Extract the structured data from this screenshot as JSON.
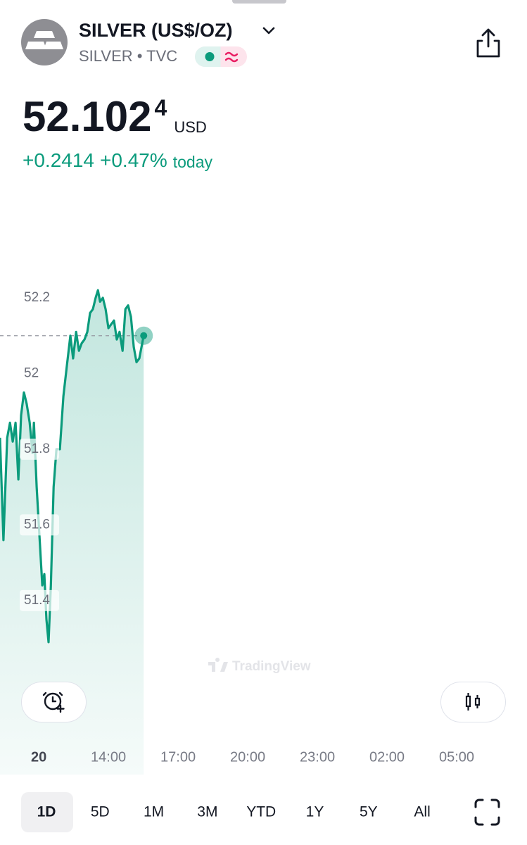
{
  "header": {
    "title": "SILVER (US$/OZ)",
    "subtitle": "SILVER • TVC",
    "price": "52.102",
    "price_tail": "4",
    "currency": "USD",
    "change": "+0.2414",
    "change_pct": "+0.47%",
    "change_period": "today"
  },
  "chart_data": {
    "type": "line",
    "color": "#0b9b7c",
    "x": [
      9.33,
      9.48,
      9.64,
      9.76,
      9.88,
      10.0,
      10.12,
      10.24,
      10.36,
      10.48,
      10.61,
      10.73,
      10.79,
      10.91,
      11.03,
      11.15,
      11.24,
      11.33,
      11.42,
      11.52,
      11.64,
      11.76,
      11.91,
      12.06,
      12.21,
      12.36,
      12.48,
      12.61,
      12.73,
      12.85,
      12.97,
      13.09,
      13.21,
      13.33,
      13.45,
      13.55,
      13.64,
      13.76,
      13.88,
      14.0,
      14.12,
      14.24,
      14.36,
      14.48,
      14.61,
      14.73,
      14.85,
      14.97,
      15.09,
      15.21,
      15.33,
      15.52
    ],
    "values": [
      51.83,
      51.56,
      51.83,
      51.87,
      51.82,
      51.87,
      51.72,
      51.89,
      51.95,
      51.92,
      51.87,
      51.79,
      51.87,
      51.7,
      51.57,
      51.44,
      51.47,
      51.35,
      51.29,
      51.44,
      51.7,
      51.8,
      51.8,
      51.94,
      52.02,
      52.1,
      52.04,
      52.11,
      52.06,
      52.08,
      52.09,
      52.11,
      52.16,
      52.17,
      52.2,
      52.22,
      52.19,
      52.2,
      52.17,
      52.12,
      52.13,
      52.14,
      52.09,
      52.11,
      52.06,
      52.17,
      52.18,
      52.15,
      52.07,
      52.03,
      52.04,
      52.1
    ],
    "xlim": [
      9.33,
      32.03
    ],
    "xticks": [
      {
        "value": 11,
        "label": "20"
      },
      {
        "value": 14,
        "label": "14:00"
      },
      {
        "value": 17,
        "label": "17:00"
      },
      {
        "value": 20,
        "label": "20:00"
      },
      {
        "value": 23,
        "label": "23:00"
      },
      {
        "value": 26,
        "label": "02:00"
      },
      {
        "value": 29,
        "label": "05:00"
      }
    ],
    "ylim": [
      50.94,
      52.28
    ],
    "yticks": [
      51.4,
      51.6,
      51.8,
      52,
      52.2
    ],
    "grid": false,
    "watermark": "TradingView"
  },
  "periods": [
    "1D",
    "5D",
    "1M",
    "3M",
    "YTD",
    "1Y",
    "5Y",
    "All"
  ],
  "selected_period": 0
}
